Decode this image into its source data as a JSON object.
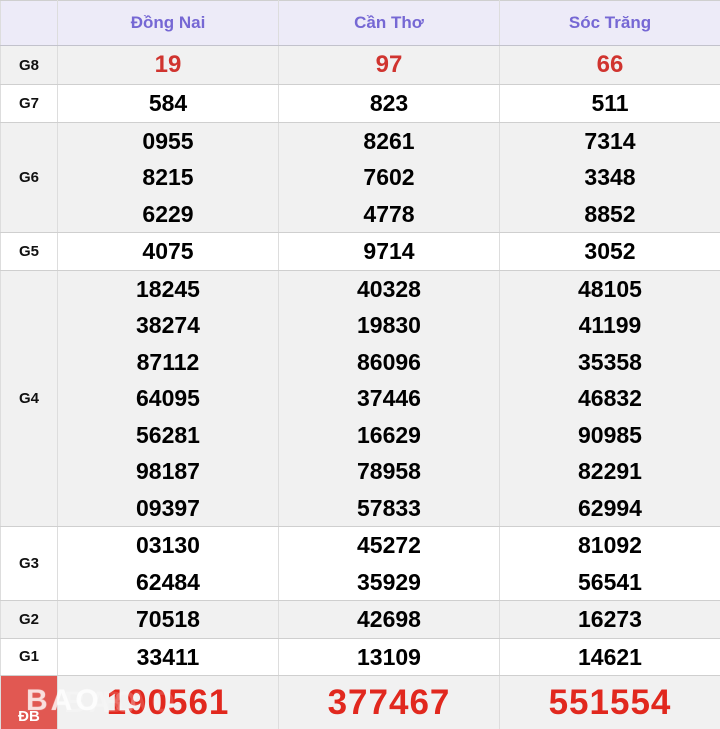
{
  "table": {
    "corner_label": "",
    "columns": [
      "Đồng Nai",
      "Cần Thơ",
      "Sóc Trăng"
    ],
    "rows": [
      {
        "label": "G8",
        "type": "highlight",
        "values": [
          [
            "19"
          ],
          [
            "97"
          ],
          [
            "66"
          ]
        ]
      },
      {
        "label": "G7",
        "type": "normal",
        "values": [
          [
            "584"
          ],
          [
            "823"
          ],
          [
            "511"
          ]
        ]
      },
      {
        "label": "G6",
        "type": "normal",
        "values": [
          [
            "0955",
            "8215",
            "6229"
          ],
          [
            "8261",
            "7602",
            "4778"
          ],
          [
            "7314",
            "3348",
            "8852"
          ]
        ]
      },
      {
        "label": "G5",
        "type": "normal",
        "values": [
          [
            "4075"
          ],
          [
            "9714"
          ],
          [
            "3052"
          ]
        ]
      },
      {
        "label": "G4",
        "type": "normal",
        "values": [
          [
            "18245",
            "38274",
            "87112",
            "64095",
            "56281",
            "98187",
            "09397"
          ],
          [
            "40328",
            "19830",
            "86096",
            "37446",
            "16629",
            "78958",
            "57833"
          ],
          [
            "48105",
            "41199",
            "35358",
            "46832",
            "90985",
            "82291",
            "62994"
          ]
        ]
      },
      {
        "label": "G3",
        "type": "normal",
        "values": [
          [
            "03130",
            "62484"
          ],
          [
            "45272",
            "35929"
          ],
          [
            "81092",
            "56541"
          ]
        ]
      },
      {
        "label": "G2",
        "type": "normal",
        "values": [
          [
            "70518"
          ],
          [
            "42698"
          ],
          [
            "16273"
          ]
        ]
      },
      {
        "label": "G1",
        "type": "normal",
        "values": [
          [
            "33411"
          ],
          [
            "13109"
          ],
          [
            "14621"
          ]
        ]
      },
      {
        "label": "ĐB",
        "type": "special",
        "values": [
          [
            "190561"
          ],
          [
            "377467"
          ],
          [
            "551554"
          ]
        ]
      }
    ]
  },
  "watermark": {
    "text": "BAO"
  },
  "colors": {
    "header_text": "#7668d4",
    "header_bg": "#edebf8",
    "shade_bg": "#f1f1f1",
    "g8_value": "#d0342f",
    "special_value": "#e1281e",
    "special_label_bg": "#e15852"
  }
}
